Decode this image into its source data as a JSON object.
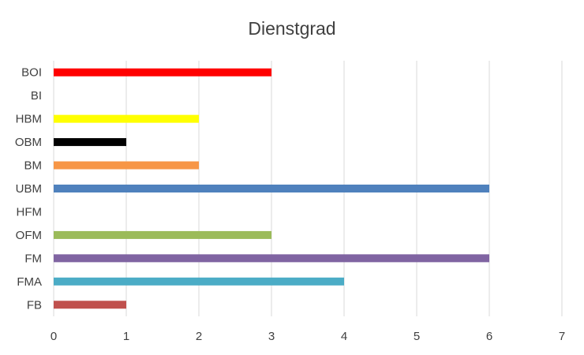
{
  "chart_data": {
    "type": "bar",
    "orientation": "horizontal",
    "title": "Dienstgrad",
    "xlabel": "",
    "ylabel": "",
    "categories": [
      "FB",
      "FMA",
      "FM",
      "OFM",
      "HFM",
      "UBM",
      "BM",
      "OBM",
      "HBM",
      "BI",
      "BOI"
    ],
    "values": [
      1,
      4,
      6,
      3,
      0,
      6,
      2,
      1,
      2,
      0,
      3
    ],
    "bar_colors": [
      "#c0504d",
      "#4bacc6",
      "#8064a2",
      "#9bbb59",
      "#1f497d",
      "#4f81bd",
      "#f79646",
      "#000000",
      "#ffff00",
      "#00b050",
      "#ff0000"
    ],
    "xlim": [
      0,
      7
    ],
    "xticks": [
      "0",
      "1",
      "2",
      "3",
      "4",
      "5",
      "6",
      "7"
    ],
    "grid": true,
    "legend": "none"
  }
}
